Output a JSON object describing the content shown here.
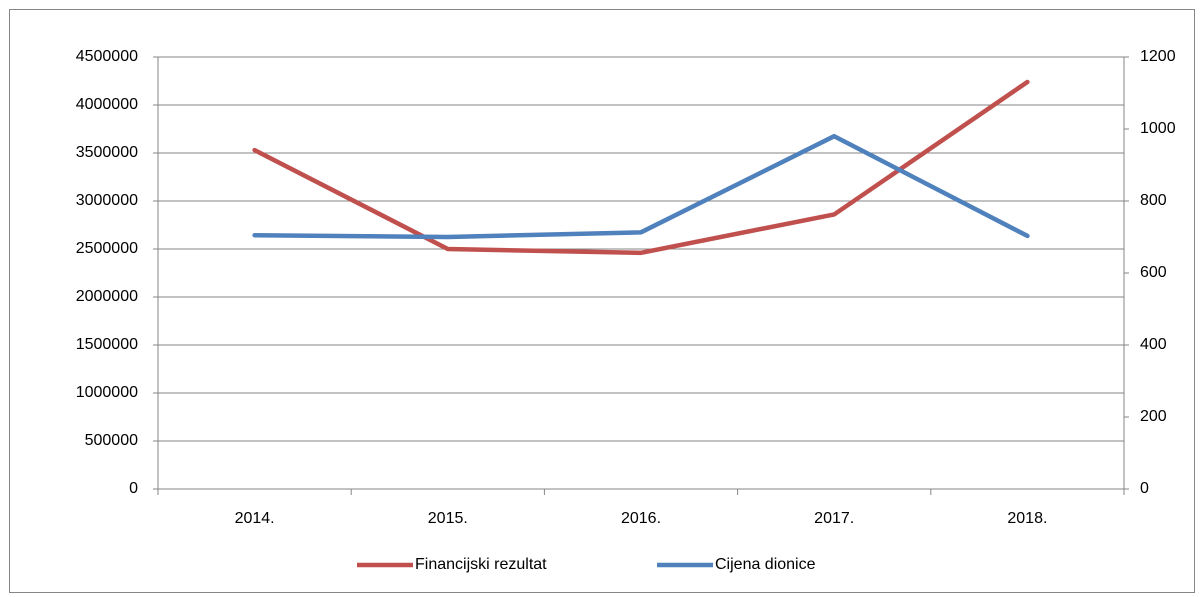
{
  "chart_data": {
    "type": "line",
    "categories": [
      "2014.",
      "2015.",
      "2016.",
      "2017.",
      "2018."
    ],
    "series": [
      {
        "name": "Financijski rezultat",
        "color": "#c0504d",
        "values": [
          3530000,
          2500000,
          2460000,
          2860000,
          4240000
        ]
      },
      {
        "name": "Cijena dionice",
        "color": "#4f81bd",
        "axis": "y2",
        "values": [
          705,
          700,
          713,
          980,
          703
        ]
      }
    ],
    "ylim": [
      0,
      4500000
    ],
    "yticks": [
      0,
      500000,
      1000000,
      1500000,
      2000000,
      2500000,
      3000000,
      3500000,
      4000000,
      4500000
    ],
    "y2lim": [
      0,
      1200
    ],
    "y2ticks": [
      0,
      200,
      400,
      600,
      800,
      1000,
      1200
    ],
    "grid": true,
    "legend": "bottom"
  }
}
